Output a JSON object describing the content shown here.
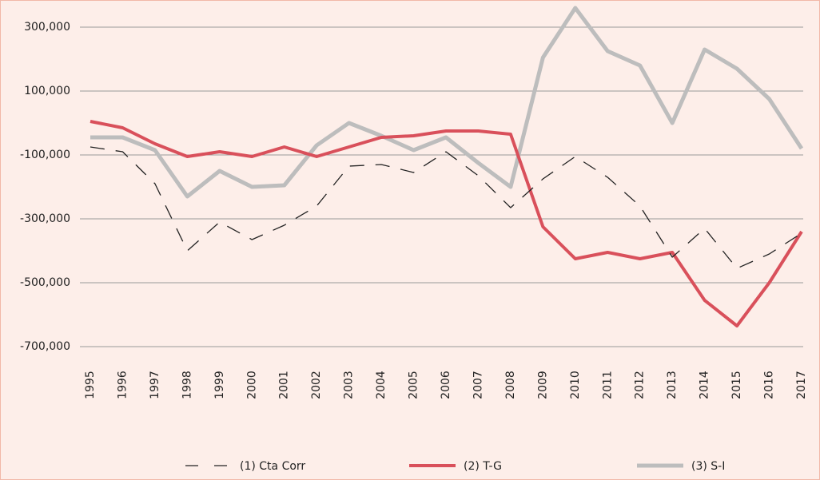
{
  "chart_data": {
    "type": "line",
    "categories": [
      "1995",
      "1996",
      "1997",
      "1998",
      "1999",
      "2000",
      "2001",
      "2002",
      "2003",
      "2004",
      "2005",
      "2006",
      "2007",
      "2008",
      "2009",
      "2010",
      "2011",
      "2012",
      "2013",
      "2014",
      "2015",
      "2016",
      "2017"
    ],
    "series": [
      {
        "name": "(1) Cta Corr",
        "color": "#222222",
        "dash": true,
        "values": [
          -75000,
          -90000,
          -190000,
          -400000,
          -310000,
          -365000,
          -320000,
          -260000,
          -135000,
          -130000,
          -155000,
          -90000,
          -165000,
          -265000,
          -175000,
          -105000,
          -170000,
          -260000,
          -420000,
          -330000,
          -455000,
          -410000,
          -345000
        ]
      },
      {
        "name": "(2) T-G",
        "color": "#d9505b",
        "values": [
          5000,
          -15000,
          -65000,
          -105000,
          -90000,
          -105000,
          -75000,
          -105000,
          -75000,
          -45000,
          -40000,
          -25000,
          -25000,
          -35000,
          -325000,
          -425000,
          -405000,
          -425000,
          -405000,
          -555000,
          -635000,
          -500000,
          -340000
        ]
      },
      {
        "name": "(3) S-I",
        "color": "#bdbdbd",
        "values": [
          -45000,
          -45000,
          -85000,
          -230000,
          -150000,
          -200000,
          -195000,
          -70000,
          0,
          -40000,
          -85000,
          -45000,
          -125000,
          -200000,
          205000,
          360000,
          225000,
          180000,
          0,
          230000,
          170000,
          75000,
          -80000
        ]
      }
    ],
    "ylim": [
      -700000,
      385000
    ],
    "yticks": [
      {
        "value": 300000,
        "label": "300,000"
      },
      {
        "value": 100000,
        "label": "100,000"
      },
      {
        "value": -100000,
        "label": "-100,000"
      },
      {
        "value": -300000,
        "label": "-300,000"
      },
      {
        "value": -500000,
        "label": "-500,000"
      },
      {
        "value": -700000,
        "label": "-700,000"
      }
    ],
    "grid": true,
    "legend": "bottom"
  }
}
